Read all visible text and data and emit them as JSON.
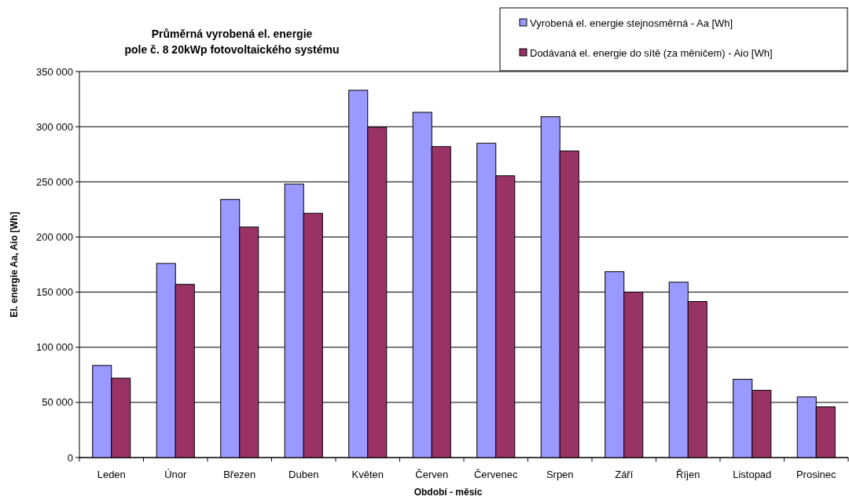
{
  "chart_data": {
    "type": "bar",
    "title": "Průměrná vyrobená el. energie\npole č. 8 20kWp fotovoltaického systému",
    "xlabel": "Období - měsíc",
    "ylabel": "El. energie Aa, Aio [Wh]",
    "categories": [
      "Leden",
      "Únor",
      "Březen",
      "Duben",
      "Květen",
      "Červen",
      "Červenec",
      "Srpen",
      "Září",
      "Říjen",
      "Listopad",
      "Prosinec"
    ],
    "series": [
      {
        "name": "Vyrobená el. energie  stejnosměrná - Aa [Wh]",
        "color": "#9999ff",
        "values": [
          83500,
          176000,
          234000,
          248000,
          333000,
          313000,
          285000,
          309000,
          168500,
          159000,
          71000,
          55000
        ]
      },
      {
        "name": "Dodávaná el. energie do sítě (za měničem) - Aio [Wh]",
        "color": "#993366",
        "values": [
          72000,
          157000,
          209000,
          221500,
          299500,
          282000,
          255500,
          278000,
          150000,
          141500,
          61000,
          46000
        ]
      }
    ],
    "ylim": [
      0,
      350000
    ],
    "yticks": [
      {
        "value": 0,
        "label": "0"
      },
      {
        "value": 50000,
        "label": "50 000"
      },
      {
        "value": 100000,
        "label": "100 000"
      },
      {
        "value": 150000,
        "label": "150 000"
      },
      {
        "value": 200000,
        "label": "200 000"
      },
      {
        "value": 250000,
        "label": "250 000"
      },
      {
        "value": 300000,
        "label": "300 000"
      },
      {
        "value": 350000,
        "label": "350 000"
      }
    ],
    "grid": "y",
    "legend": "top right"
  }
}
